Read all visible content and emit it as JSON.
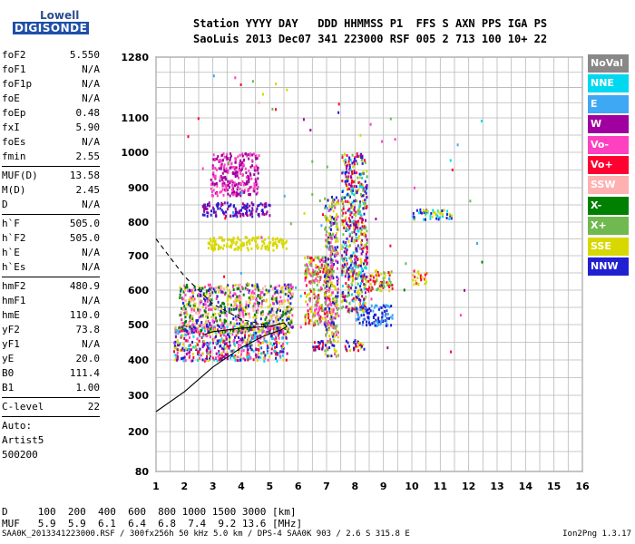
{
  "logo": {
    "line1": "Lowell",
    "line2": "DIGISONDE"
  },
  "header": {
    "line1": "Station YYYY DAY   DDD HHMMSS P1  FFS S AXN PPS IGA PS",
    "line2": "SaoLuis 2013 Dec07 341 223000 RSF 005 2 713 100 10+ 22"
  },
  "params": [
    [
      {
        "k": "foF2",
        "v": "5.550"
      },
      {
        "k": "foF1",
        "v": "N/A"
      },
      {
        "k": "foF1p",
        "v": "N/A"
      },
      {
        "k": "foE",
        "v": "N/A"
      },
      {
        "k": "foEp",
        "v": "0.48"
      },
      {
        "k": "fxI",
        "v": "5.90"
      },
      {
        "k": "foEs",
        "v": "N/A"
      },
      {
        "k": "fmin",
        "v": "2.55"
      }
    ],
    [
      {
        "k": "MUF(D)",
        "v": "13.58"
      },
      {
        "k": "M(D)",
        "v": "2.45"
      },
      {
        "k": "D",
        "v": "N/A"
      }
    ],
    [
      {
        "k": "h`F",
        "v": "505.0"
      },
      {
        "k": "h`F2",
        "v": "505.0"
      },
      {
        "k": "h`E",
        "v": "N/A"
      },
      {
        "k": "h`Es",
        "v": "N/A"
      }
    ],
    [
      {
        "k": "hmF2",
        "v": "480.9"
      },
      {
        "k": "hmF1",
        "v": "N/A"
      },
      {
        "k": "hmE",
        "v": "110.0"
      },
      {
        "k": "yF2",
        "v": "73.8"
      },
      {
        "k": "yF1",
        "v": "N/A"
      },
      {
        "k": "yE",
        "v": "20.0"
      },
      {
        "k": "B0",
        "v": "111.4"
      },
      {
        "k": "B1",
        "v": "1.00"
      }
    ],
    [
      {
        "k": "C-level",
        "v": "22"
      }
    ],
    [
      {
        "k": "Auto:",
        "v": ""
      },
      {
        "k": "Artist5",
        "v": ""
      },
      {
        "k": "500200",
        "v": ""
      }
    ]
  ],
  "bottom": {
    "d_row": "D     100  200  400  600  800 1000 1500 3000 [km]",
    "muf_row": "MUF   5.9  5.9  6.1  6.4  6.8  7.4  9.2 13.6 [MHz]"
  },
  "footer": {
    "left": "SAA0K_2013341223000.RSF / 300fx256h 50 kHz 5.0 km / DPS-4 SAA0K 903 / 2.6 S 315.8 E",
    "right": "Ion2Png 1.3.17"
  },
  "legend": [
    {
      "label": "NoVal",
      "color": "#888888"
    },
    {
      "label": "NNE",
      "color": "#00d8f0"
    },
    {
      "label": "E",
      "color": "#3fa8f4"
    },
    {
      "label": "W",
      "color": "#a000a0"
    },
    {
      "label": "Vo-",
      "color": "#ff40c0"
    },
    {
      "label": "Vo+",
      "color": "#ff0030"
    },
    {
      "label": "SSW",
      "color": "#ffb0b0"
    },
    {
      "label": "X-",
      "color": "#008000"
    },
    {
      "label": "X+",
      "color": "#70b850"
    },
    {
      "label": "SSE",
      "color": "#d8d800"
    },
    {
      "label": "NNW",
      "color": "#2020d0"
    }
  ],
  "chart_data": {
    "type": "scatter",
    "title": "",
    "xlabel": "",
    "ylabel": "",
    "x_ticks": [
      1,
      2,
      3,
      4,
      5,
      6,
      7,
      8,
      9,
      10,
      11,
      12,
      13,
      14,
      15,
      16
    ],
    "y_ticks": [
      80,
      200,
      300,
      400,
      500,
      600,
      700,
      800,
      900,
      1000,
      1100,
      1280
    ],
    "xlim": [
      1,
      16
    ],
    "ylim": [
      80,
      1280
    ],
    "grid": true,
    "regions": [
      {
        "x": [
          1.6,
          5.6
        ],
        "y": [
          400,
          500
        ],
        "colors": [
          "#ff40c0",
          "#a000a0",
          "#ff0030",
          "#2020d0",
          "#00d8f0",
          "#d8d800"
        ]
      },
      {
        "x": [
          1.8,
          5.8
        ],
        "y": [
          480,
          620
        ],
        "colors": [
          "#d8d800",
          "#2020d0",
          "#ff40c0",
          "#008000",
          "#ffb0b0"
        ]
      },
      {
        "x": [
          2.6,
          5.0
        ],
        "y": [
          820,
          860
        ],
        "colors": [
          "#2020d0",
          "#a000a0"
        ]
      },
      {
        "x": [
          2.8,
          5.6
        ],
        "y": [
          720,
          760
        ],
        "colors": [
          "#d8d800"
        ]
      },
      {
        "x": [
          2.9,
          4.6
        ],
        "y": [
          880,
          1000
        ],
        "colors": [
          "#a000a0",
          "#ff40c0"
        ]
      },
      {
        "x": [
          6.2,
          7.2
        ],
        "y": [
          500,
          700
        ],
        "colors": [
          "#ff40c0",
          "#ff0030",
          "#d8d800",
          "#70b850"
        ]
      },
      {
        "x": [
          6.9,
          7.4
        ],
        "y": [
          410,
          880
        ],
        "colors": [
          "#2020d0",
          "#d8d800",
          "#70b850",
          "#ff40c0"
        ]
      },
      {
        "x": [
          7.5,
          8.4
        ],
        "y": [
          540,
          1000
        ],
        "colors": [
          "#2020d0",
          "#d8d800",
          "#a000a0",
          "#70b850",
          "#00d8f0",
          "#ff0030"
        ]
      },
      {
        "x": [
          8.0,
          9.3
        ],
        "y": [
          500,
          560
        ],
        "colors": [
          "#2020d0",
          "#3fa8f4"
        ]
      },
      {
        "x": [
          8.4,
          9.3
        ],
        "y": [
          600,
          660
        ],
        "colors": [
          "#d8d800",
          "#ff0030",
          "#70b850"
        ]
      },
      {
        "x": [
          10.0,
          10.5
        ],
        "y": [
          620,
          660
        ],
        "colors": [
          "#d8d800",
          "#ff0030"
        ]
      },
      {
        "x": [
          10.0,
          11.4
        ],
        "y": [
          810,
          840
        ],
        "colors": [
          "#00d8f0",
          "#d8d800",
          "#2020d0"
        ]
      },
      {
        "x": [
          6.5,
          6.9
        ],
        "y": [
          430,
          460
        ],
        "colors": [
          "#2020d0",
          "#ff0030"
        ]
      },
      {
        "x": [
          7.6,
          8.3
        ],
        "y": [
          430,
          460
        ],
        "colors": [
          "#2020d0",
          "#ff0030",
          "#d8d800"
        ]
      }
    ],
    "profile_solid": [
      [
        1,
        255
      ],
      [
        2,
        310
      ],
      [
        3,
        380
      ],
      [
        4,
        435
      ],
      [
        4.8,
        468
      ],
      [
        5.4,
        485
      ],
      [
        5.6,
        495
      ],
      [
        5.5,
        505
      ],
      [
        5.0,
        495
      ],
      [
        4.0,
        490
      ],
      [
        3.0,
        480
      ],
      [
        2.7,
        472
      ]
    ],
    "profile_dashed": [
      [
        1,
        750
      ],
      [
        2,
        640
      ],
      [
        3,
        560
      ],
      [
        4,
        515
      ],
      [
        4.8,
        500
      ]
    ]
  }
}
